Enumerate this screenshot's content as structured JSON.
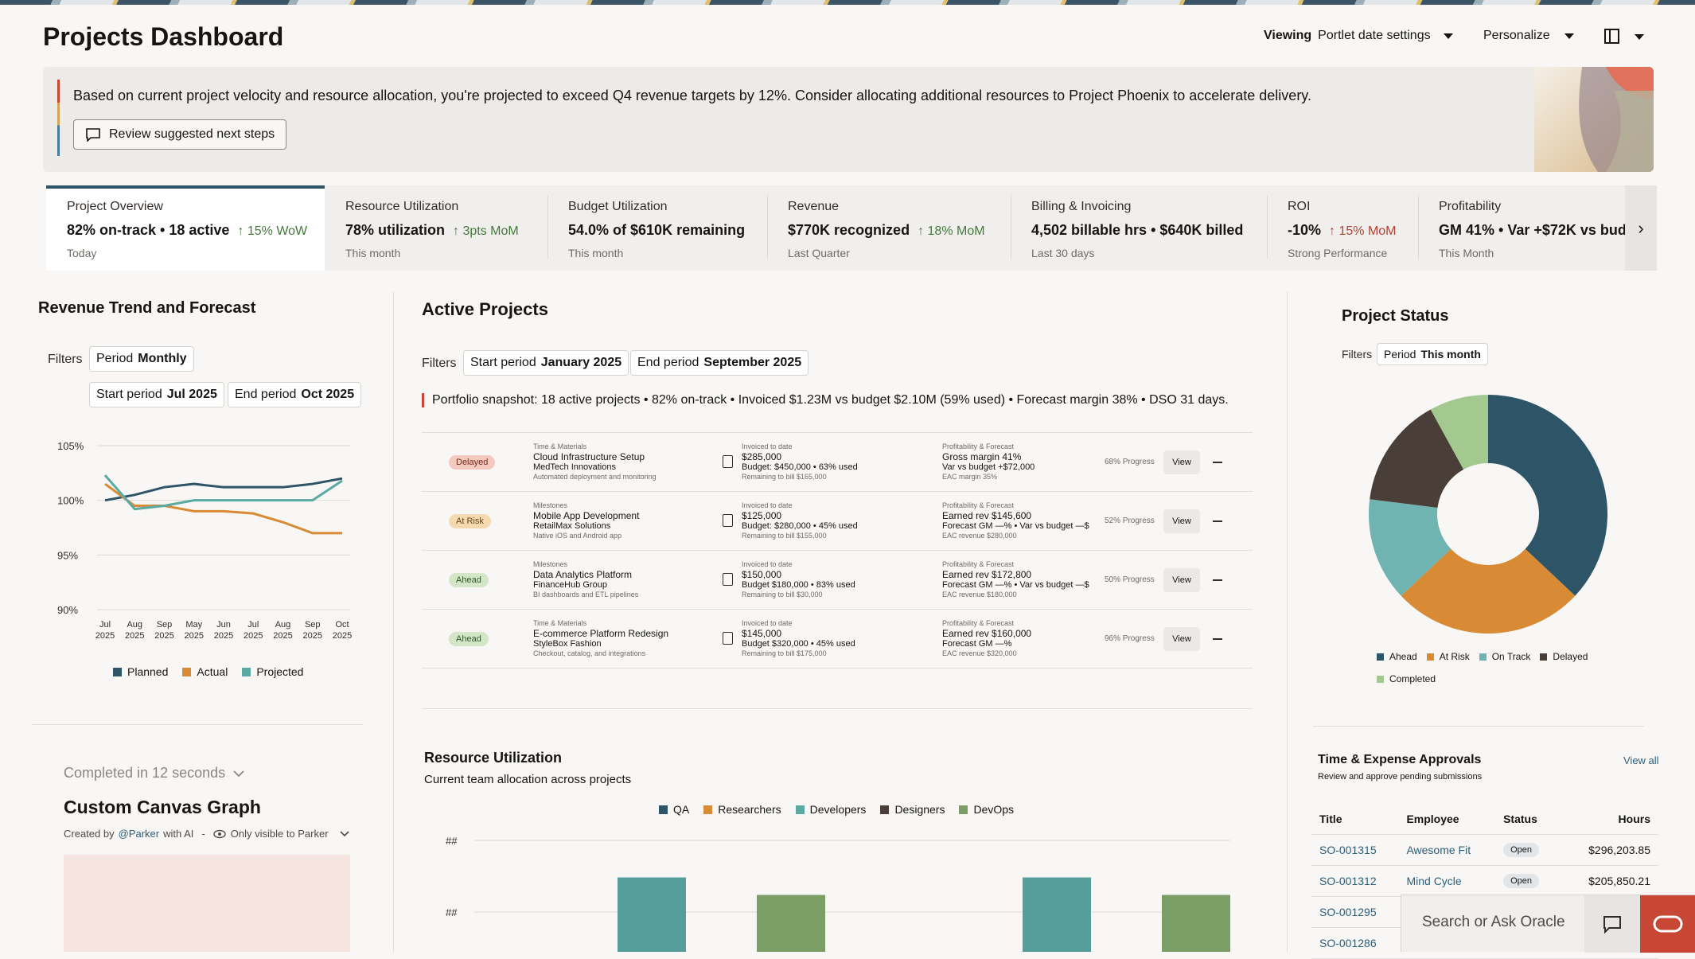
{
  "header": {
    "title": "Projects Dashboard",
    "viewing_label": "Viewing",
    "viewing_value": "Portlet date settings",
    "personalize": "Personalize"
  },
  "banner": {
    "text": "Based on current project velocity and resource allocation, you're projected to exceed Q4 revenue targets by 12%. Consider allocating additional resources to Project Phoenix to accelerate delivery.",
    "button": "Review suggested next steps"
  },
  "kpis": [
    {
      "label": "Project Overview",
      "value": "82% on-track • 18 active",
      "delta": "15% WoW",
      "sub": "Today"
    },
    {
      "label": "Resource Utilization",
      "value": "78% utilization",
      "delta": "3pts MoM",
      "sub": "This month"
    },
    {
      "label": "Budget Utilization",
      "value": "54.0% of $610K remaining",
      "delta": "",
      "sub": "This month"
    },
    {
      "label": "Revenue",
      "value": "$770K recognized",
      "delta": "18% MoM",
      "sub": "Last Quarter"
    },
    {
      "label": "Billing & Invoicing",
      "value": "4,502 billable hrs • $640K billed",
      "delta": "",
      "sub": "Last 30 days"
    },
    {
      "label": "ROI",
      "value": "-10%",
      "delta": "15% MoM",
      "sub": "Strong Performance"
    },
    {
      "label": "Profitability",
      "value": "GM 41% • Var +$72K vs bud",
      "delta": "",
      "sub": "This Month"
    }
  ],
  "revenue": {
    "title": "Revenue Trend and Forecast",
    "filters_label": "Filters",
    "period_label": "Period",
    "period_value": "Monthly",
    "start_label": "Start period",
    "start_value": "Jul 2025",
    "end_label": "End period",
    "end_value": "Oct 2025"
  },
  "chart_data": {
    "type": "line",
    "x": [
      "Jul 2025",
      "Aug 2025",
      "Sep 2025",
      "May 2025",
      "Jun 2025",
      "Jul 2025",
      "Aug 2025",
      "Sep 2025",
      "Oct 2025"
    ],
    "ylim": [
      90,
      105
    ],
    "yticks": [
      "105%",
      "100%",
      "95%",
      "90%"
    ],
    "series": [
      {
        "name": "Planned",
        "color": "#2e5468",
        "values": [
          100,
          100.5,
          101.2,
          101.5,
          101.2,
          101.2,
          101.2,
          101.5,
          102
        ]
      },
      {
        "name": "Actual",
        "color": "#d98a35",
        "values": [
          101.5,
          99.5,
          99.5,
          99,
          99,
          98.8,
          98,
          97,
          97
        ]
      },
      {
        "name": "Projected",
        "color": "#5aa9a2",
        "values": [
          102.3,
          99.2,
          99.5,
          100,
          100,
          100,
          100,
          100,
          101.8
        ]
      }
    ]
  },
  "active": {
    "title": "Active Projects",
    "filters_label": "Filters",
    "start_label": "Start period",
    "start_value": "January 2025",
    "end_label": "End period",
    "end_value": "September 2025",
    "snapshot": "Portfolio snapshot: 18 active projects • 82% on-track • Invoiced $1.23M vs budget $2.10M (59% used) • Forecast margin 38% • DSO 31 days.",
    "rows": [
      {
        "status": "Delayed",
        "type": "Time & Materials",
        "name": "Cloud Infrastructure Setup",
        "client": "MedTech Innovations",
        "desc": "Automated deployment and monitoring",
        "inv_label": "Invoiced to date",
        "inv": "$285,000",
        "budget": "Budget: $450,000 • 63% used",
        "remaining": "Remaining to bill $165,000",
        "prof_label": "Profitability & Forecast",
        "prof": "Gross margin 41%",
        "prof2": "Var vs budget +$72,000",
        "prof3": "EAC margin 35%",
        "progress": "68% Progress",
        "view": "View"
      },
      {
        "status": "At Risk",
        "type": "Milestones",
        "name": "Mobile App Development",
        "client": "RetailMax Solutions",
        "desc": "Native iOS and Android app",
        "inv_label": "Invoiced to date",
        "inv": "$125,000",
        "budget": "Budget: $280,000 • 45% used",
        "remaining": "Remaining to bill $155,000",
        "prof_label": "Profitability & Forecast",
        "prof": "Earned rev $145,600",
        "prof2": "Forecast GM —% • Var vs budget —$",
        "prof3": "EAC revenue $280,000",
        "progress": "52% Progress",
        "view": "View"
      },
      {
        "status": "Ahead",
        "type": "Milestones",
        "name": "Data Analytics Platform",
        "client": "FinanceHub Group",
        "desc": "BI dashboards and ETL pipelines",
        "inv_label": "Invoiced to date",
        "inv": "$150,000",
        "budget": "Budget $180,000 • 83% used",
        "remaining": "Remaining to bill $30,000",
        "prof_label": "Profitability & Forecast",
        "prof": "Earned rev $172,800",
        "prof2": "Forecast GM —% • Var vs budget —$",
        "prof3": "EAC revenue $180,000",
        "progress": "50% Progress",
        "view": "View"
      },
      {
        "status": "Ahead",
        "type": "Time & Materials",
        "name": "E-commerce Platform Redesign",
        "client": "StyleBox Fashion",
        "desc": "Checkout, catalog, and integrations",
        "inv_label": "Invoiced to date",
        "inv": "$145,000",
        "budget": "Budget $320,000 • 45% used",
        "remaining": "Remaining to bill $175,000",
        "prof_label": "Profitability & Forecast",
        "prof": "Earned rev $160,000",
        "prof2": "Forecast GM —%",
        "prof3": "EAC revenue $320,000",
        "progress": "96% Progress",
        "view": "View"
      }
    ]
  },
  "resource": {
    "title": "Resource Utilization",
    "subtitle": "Current team allocation across projects",
    "legend": [
      {
        "name": "QA",
        "color": "#2e5468"
      },
      {
        "name": "Researchers",
        "color": "#d98a35"
      },
      {
        "name": "Developers",
        "color": "#5aa9a2"
      },
      {
        "name": "Designers",
        "color": "#4a3f38"
      },
      {
        "name": "DevOps",
        "color": "#7a9e66"
      }
    ],
    "ytick": "##",
    "bars": [
      {
        "color": "#559e9b",
        "value": 0.85
      },
      {
        "color": "#7a9e66",
        "value": 0.65
      },
      {
        "color": "#559e9b",
        "value": 0.85
      },
      {
        "color": "#7a9e66",
        "value": 0.65
      }
    ]
  },
  "status": {
    "title": "Project Status",
    "filters_label": "Filters",
    "period_label": "Period",
    "period_value": "This month",
    "slices": [
      {
        "name": "Ahead",
        "value": 37,
        "color": "#2e5468"
      },
      {
        "name": "At Risk",
        "value": 26,
        "color": "#d98a35"
      },
      {
        "name": "On Track",
        "value": 14,
        "color": "#6fb4b0"
      },
      {
        "name": "Delayed",
        "value": 15,
        "color": "#4a3f38"
      },
      {
        "name": "Completed",
        "value": 8,
        "color": "#a3c890"
      }
    ]
  },
  "custom": {
    "completed": "Completed in 12 seconds",
    "title": "Custom Canvas Graph",
    "created_prefix": "Created by",
    "author": "@Parker",
    "created_suffix": "with AI",
    "sep": "-",
    "visibility": "Only visible to Parker"
  },
  "tea": {
    "title": "Time & Expense Approvals",
    "subtitle": "Review and approve pending submissions",
    "view_all": "View all",
    "headers": [
      "Title",
      "Employee",
      "Status",
      "Hours"
    ],
    "rows": [
      {
        "title": "SO-001315",
        "employee": "Awesome Fit",
        "status": "Open",
        "hours": "$296,203.85"
      },
      {
        "title": "SO-001312",
        "employee": "Mind Cycle",
        "status": "Open",
        "hours": "$205,850.21"
      },
      {
        "title": "SO-001295",
        "employee": "",
        "status": "",
        "hours": ""
      },
      {
        "title": "SO-001286",
        "employee": "",
        "status": "",
        "hours": ""
      }
    ]
  },
  "search": {
    "placeholder": "Search or Ask Oracle"
  }
}
